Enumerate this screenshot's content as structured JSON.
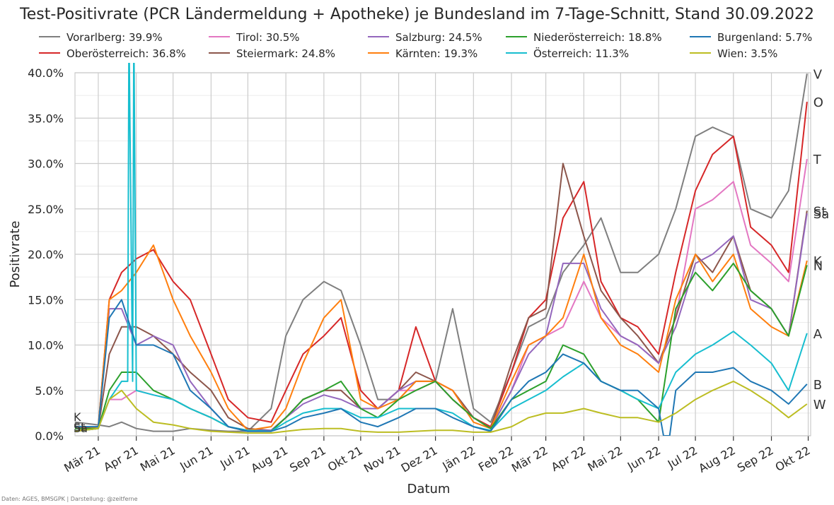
{
  "chart_data": {
    "type": "line",
    "title": "Test-Positivrate (PCR Ländermeldung + Apotheke) je Bundesland im 7-Tage-Schnitt, Stand 30.09.2022",
    "xlabel": "Datum",
    "ylabel": "Positivrate",
    "ylim": [
      0,
      40
    ],
    "y_ticks": [
      "0.0%",
      "5.0%",
      "10.0%",
      "15.0%",
      "20.0%",
      "25.0%",
      "30.0%",
      "35.0%",
      "40.0%"
    ],
    "x_ticks": [
      "Mär 21",
      "Apr 21",
      "Mai 21",
      "Jun 21",
      "Jul 21",
      "Aug 21",
      "Sep 21",
      "Okt 21",
      "Nov 21",
      "Dez 21",
      "Jän 22",
      "Feb 22",
      "Mär 22",
      "Apr 22",
      "Mai 22",
      "Jun 22",
      "Jul 22",
      "Aug 22",
      "Sep 22",
      "Okt 22"
    ],
    "x_tick_dates": [
      "2021-03-01",
      "2021-04-01",
      "2021-05-01",
      "2021-06-01",
      "2021-07-01",
      "2021-08-01",
      "2021-09-01",
      "2021-10-01",
      "2021-11-01",
      "2021-12-01",
      "2022-01-01",
      "2022-02-01",
      "2022-03-01",
      "2022-04-01",
      "2022-05-01",
      "2022-06-01",
      "2022-07-01",
      "2022-08-01",
      "2022-09-01",
      "2022-10-01"
    ],
    "x_range": [
      "2021-02-10",
      "2022-10-03"
    ],
    "grid": true,
    "legend_position": "top",
    "series": [
      {
        "name": "Vorarlberg: 39.9%",
        "color": "#7f7f7f",
        "end_label": "V",
        "x": [
          "2021-02-10",
          "2021-03-01",
          "2021-03-10",
          "2021-03-20",
          "2021-04-01",
          "2021-04-15",
          "2021-05-01",
          "2021-05-15",
          "2021-06-01",
          "2021-06-15",
          "2021-07-01",
          "2021-07-20",
          "2021-08-01",
          "2021-08-15",
          "2021-09-01",
          "2021-09-15",
          "2021-10-01",
          "2021-10-15",
          "2021-11-01",
          "2021-11-15",
          "2021-12-01",
          "2021-12-15",
          "2022-01-01",
          "2022-01-15",
          "2022-02-01",
          "2022-02-15",
          "2022-03-01",
          "2022-03-15",
          "2022-04-01",
          "2022-04-15",
          "2022-05-01",
          "2022-05-15",
          "2022-06-01",
          "2022-06-15",
          "2022-07-01",
          "2022-07-15",
          "2022-08-01",
          "2022-08-15",
          "2022-09-01",
          "2022-09-15",
          "2022-09-30"
        ],
        "values": [
          1.5,
          1.2,
          1.0,
          1.5,
          0.8,
          0.5,
          0.5,
          0.8,
          0.6,
          0.5,
          0.5,
          3.0,
          11.0,
          15.0,
          17.0,
          16.0,
          10.0,
          4.0,
          4.0,
          6.0,
          6.0,
          14.0,
          3.0,
          1.5,
          7.0,
          12.0,
          13.0,
          18.0,
          21.0,
          24.0,
          18.0,
          18.0,
          20.0,
          25.0,
          33.0,
          34.0,
          33.0,
          25.0,
          24.0,
          27.0,
          39.9
        ]
      },
      {
        "name": "Oberösterreich: 36.8%",
        "color": "#d62728",
        "end_label": "O",
        "x": [
          "2021-02-10",
          "2021-03-01",
          "2021-03-10",
          "2021-03-20",
          "2021-04-01",
          "2021-04-15",
          "2021-05-01",
          "2021-05-15",
          "2021-06-01",
          "2021-06-15",
          "2021-07-01",
          "2021-07-20",
          "2021-08-01",
          "2021-08-15",
          "2021-09-01",
          "2021-09-15",
          "2021-10-01",
          "2021-10-15",
          "2021-11-01",
          "2021-11-15",
          "2021-12-01",
          "2021-12-15",
          "2022-01-01",
          "2022-01-15",
          "2022-02-01",
          "2022-02-15",
          "2022-03-01",
          "2022-03-15",
          "2022-04-01",
          "2022-04-15",
          "2022-05-01",
          "2022-05-15",
          "2022-06-01",
          "2022-06-15",
          "2022-07-01",
          "2022-07-15",
          "2022-08-01",
          "2022-08-15",
          "2022-09-01",
          "2022-09-15",
          "2022-09-30"
        ],
        "values": [
          0.8,
          1.0,
          15.0,
          18.0,
          19.5,
          20.5,
          17.0,
          15.0,
          9.0,
          4.0,
          2.0,
          1.5,
          5.0,
          9.0,
          11.0,
          13.0,
          5.0,
          3.0,
          5.0,
          12.0,
          6.0,
          4.0,
          2.0,
          1.0,
          7.0,
          13.0,
          15.0,
          24.0,
          28.0,
          17.0,
          13.0,
          12.0,
          9.0,
          18.0,
          27.0,
          31.0,
          33.0,
          23.0,
          21.0,
          18.0,
          36.8
        ]
      },
      {
        "name": "Tirol: 30.5%",
        "color": "#e377c2",
        "end_label": "T",
        "x": [
          "2021-02-10",
          "2021-03-01",
          "2021-03-10",
          "2021-03-20",
          "2021-04-01",
          "2021-04-15",
          "2021-05-01",
          "2021-05-15",
          "2021-06-01",
          "2021-06-15",
          "2021-07-01",
          "2021-07-20",
          "2021-08-01",
          "2021-08-15",
          "2021-09-01",
          "2021-09-15",
          "2021-10-01",
          "2021-10-15",
          "2021-11-01",
          "2021-11-15",
          "2021-12-01",
          "2021-12-15",
          "2022-01-01",
          "2022-01-15",
          "2022-02-01",
          "2022-02-15",
          "2022-03-01",
          "2022-03-15",
          "2022-04-01",
          "2022-04-15",
          "2022-05-01",
          "2022-05-15",
          "2022-06-01",
          "2022-06-15",
          "2022-07-01",
          "2022-07-15",
          "2022-08-01",
          "2022-08-15",
          "2022-09-01",
          "2022-09-15",
          "2022-09-30"
        ],
        "values": [
          0.5,
          0.8,
          4.0,
          4.0,
          5.0,
          4.5,
          4.0,
          3.0,
          2.0,
          1.0,
          0.5,
          0.5,
          2.0,
          4.0,
          5.0,
          5.0,
          3.0,
          3.0,
          5.0,
          5.0,
          6.0,
          5.0,
          2.0,
          0.8,
          5.0,
          10.0,
          11.0,
          12.0,
          17.0,
          13.0,
          11.0,
          10.0,
          8.0,
          13.0,
          25.0,
          26.0,
          28.0,
          21.0,
          19.0,
          17.0,
          30.5
        ]
      },
      {
        "name": "Steiermark: 24.8%",
        "color": "#8c564b",
        "end_label": "St",
        "x": [
          "2021-02-10",
          "2021-03-01",
          "2021-03-10",
          "2021-03-20",
          "2021-04-01",
          "2021-04-15",
          "2021-05-01",
          "2021-05-15",
          "2021-06-01",
          "2021-06-15",
          "2021-07-01",
          "2021-07-20",
          "2021-08-01",
          "2021-08-15",
          "2021-09-01",
          "2021-09-15",
          "2021-10-01",
          "2021-10-15",
          "2021-11-01",
          "2021-11-15",
          "2021-12-01",
          "2021-12-15",
          "2022-01-01",
          "2022-01-15",
          "2022-02-01",
          "2022-02-15",
          "2022-03-01",
          "2022-03-15",
          "2022-04-01",
          "2022-04-15",
          "2022-05-01",
          "2022-05-15",
          "2022-06-01",
          "2022-06-15",
          "2022-07-01",
          "2022-07-15",
          "2022-08-01",
          "2022-08-15",
          "2022-09-01",
          "2022-09-15",
          "2022-09-30"
        ],
        "values": [
          0.5,
          0.8,
          9.0,
          12.0,
          12.0,
          11.0,
          9.0,
          7.0,
          5.0,
          2.0,
          0.8,
          0.6,
          2.0,
          4.0,
          5.0,
          5.0,
          3.0,
          3.0,
          5.0,
          7.0,
          6.0,
          5.0,
          2.0,
          0.8,
          8.0,
          13.0,
          14.0,
          30.0,
          22.0,
          16.0,
          13.0,
          11.0,
          8.0,
          13.0,
          20.0,
          18.0,
          22.0,
          16.0,
          14.0,
          11.0,
          24.8
        ]
      },
      {
        "name": "Salzburg: 24.5%",
        "color": "#9467bd",
        "end_label": "Sa",
        "x": [
          "2021-02-10",
          "2021-03-01",
          "2021-03-10",
          "2021-03-20",
          "2021-04-01",
          "2021-04-15",
          "2021-05-01",
          "2021-05-15",
          "2021-06-01",
          "2021-06-15",
          "2021-07-01",
          "2021-07-20",
          "2021-08-01",
          "2021-08-15",
          "2021-09-01",
          "2021-09-15",
          "2021-10-01",
          "2021-10-15",
          "2021-11-01",
          "2021-11-15",
          "2021-12-01",
          "2021-12-15",
          "2022-01-01",
          "2022-01-15",
          "2022-02-01",
          "2022-02-15",
          "2022-03-01",
          "2022-03-15",
          "2022-04-01",
          "2022-04-15",
          "2022-05-01",
          "2022-05-15",
          "2022-06-01",
          "2022-06-15",
          "2022-07-01",
          "2022-07-15",
          "2022-08-01",
          "2022-08-15",
          "2022-09-01",
          "2022-09-15",
          "2022-09-30"
        ],
        "values": [
          0.5,
          0.8,
          14.0,
          14.0,
          10.0,
          11.0,
          10.0,
          6.0,
          3.0,
          1.0,
          0.6,
          0.6,
          2.0,
          3.5,
          4.5,
          4.0,
          3.0,
          3.0,
          5.0,
          6.0,
          6.0,
          4.0,
          2.0,
          0.8,
          5.0,
          9.0,
          11.0,
          19.0,
          19.0,
          14.0,
          11.0,
          10.0,
          8.0,
          12.0,
          19.0,
          20.0,
          22.0,
          15.0,
          14.0,
          11.0,
          24.5
        ]
      },
      {
        "name": "Kärnten: 19.3%",
        "color": "#ff7f0e",
        "end_label": "K",
        "x": [
          "2021-02-10",
          "2021-03-01",
          "2021-03-10",
          "2021-03-20",
          "2021-04-01",
          "2021-04-15",
          "2021-05-01",
          "2021-05-15",
          "2021-06-01",
          "2021-06-15",
          "2021-07-01",
          "2021-07-20",
          "2021-08-01",
          "2021-08-15",
          "2021-09-01",
          "2021-09-15",
          "2021-10-01",
          "2021-10-15",
          "2021-11-01",
          "2021-11-15",
          "2021-12-01",
          "2021-12-15",
          "2022-01-01",
          "2022-01-15",
          "2022-02-01",
          "2022-02-15",
          "2022-03-01",
          "2022-03-15",
          "2022-04-01",
          "2022-04-15",
          "2022-05-01",
          "2022-05-15",
          "2022-06-01",
          "2022-06-15",
          "2022-07-01",
          "2022-07-15",
          "2022-08-01",
          "2022-08-15",
          "2022-09-01",
          "2022-09-15",
          "2022-09-30"
        ],
        "values": [
          0.5,
          1.0,
          15.0,
          16.0,
          18.0,
          21.0,
          15.0,
          11.0,
          7.0,
          3.0,
          0.6,
          1.0,
          3.0,
          8.0,
          13.0,
          15.0,
          4.0,
          3.0,
          4.0,
          6.0,
          6.0,
          5.0,
          1.5,
          0.8,
          6.0,
          10.0,
          11.0,
          13.0,
          20.0,
          13.0,
          10.0,
          9.0,
          7.0,
          15.0,
          20.0,
          17.0,
          20.0,
          14.0,
          12.0,
          11.0,
          19.3
        ]
      },
      {
        "name": "Niederösterreich: 18.8%",
        "color": "#2ca02c",
        "end_label": "N",
        "x": [
          "2021-02-10",
          "2021-03-01",
          "2021-03-10",
          "2021-03-20",
          "2021-04-01",
          "2021-04-15",
          "2021-05-01",
          "2021-05-15",
          "2021-06-01",
          "2021-06-15",
          "2021-07-01",
          "2021-07-20",
          "2021-08-01",
          "2021-08-15",
          "2021-09-01",
          "2021-09-15",
          "2021-10-01",
          "2021-10-15",
          "2021-11-01",
          "2021-11-15",
          "2021-12-01",
          "2021-12-15",
          "2022-01-01",
          "2022-01-15",
          "2022-02-01",
          "2022-02-15",
          "2022-03-01",
          "2022-03-15",
          "2022-04-01",
          "2022-04-15",
          "2022-05-01",
          "2022-05-15",
          "2022-06-01",
          "2022-06-15",
          "2022-07-01",
          "2022-07-15",
          "2022-08-01",
          "2022-08-15",
          "2022-09-01",
          "2022-09-15",
          "2022-09-30"
        ],
        "values": [
          0.8,
          0.8,
          5.0,
          7.0,
          7.0,
          5.0,
          4.0,
          3.0,
          2.0,
          1.0,
          0.5,
          0.5,
          2.0,
          4.0,
          5.0,
          6.0,
          3.0,
          2.0,
          4.0,
          5.0,
          6.0,
          4.0,
          2.0,
          0.8,
          4.0,
          5.0,
          6.0,
          10.0,
          9.0,
          6.0,
          5.0,
          4.0,
          1.5,
          14.0,
          18.0,
          16.0,
          19.0,
          16.0,
          14.0,
          11.0,
          18.8
        ]
      },
      {
        "name": "Österreich: 11.3%",
        "color": "#17becf",
        "end_label": "A",
        "x": [
          "2021-02-10",
          "2021-03-01",
          "2021-03-10",
          "2021-03-20",
          "2021-03-25",
          "2021-03-26",
          "2021-03-29",
          "2021-03-30",
          "2021-04-01",
          "2021-04-15",
          "2021-05-01",
          "2021-05-15",
          "2021-06-01",
          "2021-06-15",
          "2021-07-01",
          "2021-07-20",
          "2021-08-01",
          "2021-08-15",
          "2021-09-01",
          "2021-09-15",
          "2021-10-01",
          "2021-10-15",
          "2021-11-01",
          "2021-11-15",
          "2021-12-01",
          "2021-12-15",
          "2022-01-01",
          "2022-01-15",
          "2022-02-01",
          "2022-02-15",
          "2022-03-01",
          "2022-03-15",
          "2022-04-01",
          "2022-04-15",
          "2022-05-01",
          "2022-05-15",
          "2022-06-01",
          "2022-06-15",
          "2022-07-01",
          "2022-07-15",
          "2022-08-01",
          "2022-08-15",
          "2022-09-01",
          "2022-09-15",
          "2022-09-30"
        ],
        "values": [
          0.5,
          0.8,
          4.0,
          6.0,
          6.0,
          45.0,
          6.0,
          45.0,
          5.0,
          4.5,
          4.0,
          3.0,
          2.0,
          1.0,
          0.6,
          0.5,
          1.5,
          2.5,
          3.0,
          3.0,
          2.0,
          2.0,
          3.0,
          3.0,
          3.0,
          2.5,
          1.0,
          0.6,
          3.0,
          4.0,
          5.0,
          6.5,
          8.0,
          6.0,
          5.0,
          4.0,
          3.0,
          7.0,
          9.0,
          10.0,
          11.5,
          10.0,
          8.0,
          5.0,
          11.3
        ]
      },
      {
        "name": "Burgenland: 5.7%",
        "color": "#1f77b4",
        "end_label": "B",
        "x": [
          "2021-02-10",
          "2021-03-01",
          "2021-03-10",
          "2021-03-20",
          "2021-04-01",
          "2021-04-15",
          "2021-05-01",
          "2021-05-15",
          "2021-06-01",
          "2021-06-15",
          "2021-07-01",
          "2021-07-20",
          "2021-08-01",
          "2021-08-15",
          "2021-09-01",
          "2021-09-15",
          "2021-10-01",
          "2021-10-15",
          "2021-11-01",
          "2021-11-15",
          "2021-12-01",
          "2021-12-15",
          "2022-01-01",
          "2022-01-15",
          "2022-02-01",
          "2022-02-15",
          "2022-03-01",
          "2022-03-15",
          "2022-04-01",
          "2022-04-15",
          "2022-05-01",
          "2022-05-15",
          "2022-06-01",
          "2022-06-05",
          "2022-06-10",
          "2022-06-15",
          "2022-07-01",
          "2022-07-15",
          "2022-08-01",
          "2022-08-15",
          "2022-09-01",
          "2022-09-15",
          "2022-09-30"
        ],
        "values": [
          1.0,
          1.0,
          13.0,
          15.0,
          10.0,
          10.0,
          9.0,
          5.0,
          3.0,
          1.0,
          0.5,
          0.5,
          1.0,
          2.0,
          2.5,
          3.0,
          1.5,
          1.0,
          2.0,
          3.0,
          3.0,
          2.0,
          1.0,
          0.5,
          4.0,
          6.0,
          7.0,
          9.0,
          8.0,
          6.0,
          5.0,
          5.0,
          3.0,
          0.0,
          0.0,
          5.0,
          7.0,
          7.0,
          7.5,
          6.0,
          5.0,
          3.5,
          5.7
        ]
      },
      {
        "name": "Wien: 3.5%",
        "color": "#bcbd22",
        "end_label": "W",
        "x": [
          "2021-02-10",
          "2021-03-01",
          "2021-03-10",
          "2021-03-20",
          "2021-04-01",
          "2021-04-15",
          "2021-05-01",
          "2021-05-15",
          "2021-06-01",
          "2021-06-15",
          "2021-07-01",
          "2021-07-20",
          "2021-08-01",
          "2021-08-15",
          "2021-09-01",
          "2021-09-15",
          "2021-10-01",
          "2021-10-15",
          "2021-11-01",
          "2021-11-15",
          "2021-12-01",
          "2021-12-15",
          "2022-01-01",
          "2022-01-15",
          "2022-02-01",
          "2022-02-15",
          "2022-03-01",
          "2022-03-15",
          "2022-04-01",
          "2022-04-15",
          "2022-05-01",
          "2022-05-15",
          "2022-06-01",
          "2022-06-15",
          "2022-07-01",
          "2022-07-15",
          "2022-08-01",
          "2022-08-15",
          "2022-09-01",
          "2022-09-15",
          "2022-09-30"
        ],
        "values": [
          0.5,
          0.8,
          4.0,
          5.0,
          3.0,
          1.5,
          1.2,
          0.8,
          0.5,
          0.4,
          0.3,
          0.3,
          0.5,
          0.7,
          0.8,
          0.8,
          0.5,
          0.4,
          0.4,
          0.5,
          0.6,
          0.6,
          0.4,
          0.4,
          1.0,
          2.0,
          2.5,
          2.5,
          3.0,
          2.5,
          2.0,
          2.0,
          1.5,
          2.5,
          4.0,
          5.0,
          6.0,
          5.0,
          3.5,
          2.0,
          3.5
        ]
      }
    ],
    "start_labels": [
      "K",
      "St",
      "Sa"
    ],
    "source_note": "Daten: AGES, BMSGPK | Darstellung: @zeitferne"
  }
}
